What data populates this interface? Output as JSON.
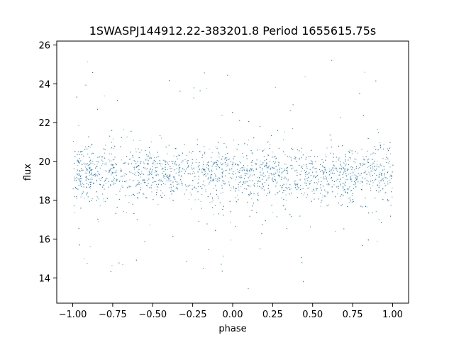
{
  "chart_data": {
    "type": "scatter",
    "title": "1SWASPJ144912.22-383201.8 Period 1655615.75s",
    "xlabel": "phase",
    "ylabel": "flux",
    "xlim": [
      -1.1,
      1.1
    ],
    "ylim": [
      12.7,
      26.2
    ],
    "xticks": [
      -1.0,
      -0.75,
      -0.5,
      -0.25,
      0.0,
      0.25,
      0.5,
      0.75,
      1.0
    ],
    "xtick_labels": [
      "−1.00",
      "−0.75",
      "−0.50",
      "−0.25",
      "0.00",
      "0.25",
      "0.50",
      "0.75",
      "1.00"
    ],
    "yticks": [
      14,
      16,
      18,
      20,
      22,
      24,
      26
    ],
    "ytick_labels": [
      "14",
      "16",
      "18",
      "20",
      "22",
      "24",
      "26"
    ],
    "grid": false,
    "marker_color": "#1f77b4",
    "distribution": {
      "phase_range": [
        -1.0,
        1.0
      ],
      "flux_center": 19.4,
      "core_range": [
        17.2,
        21.6
      ],
      "outlier_range": [
        13.3,
        25.4
      ]
    }
  }
}
